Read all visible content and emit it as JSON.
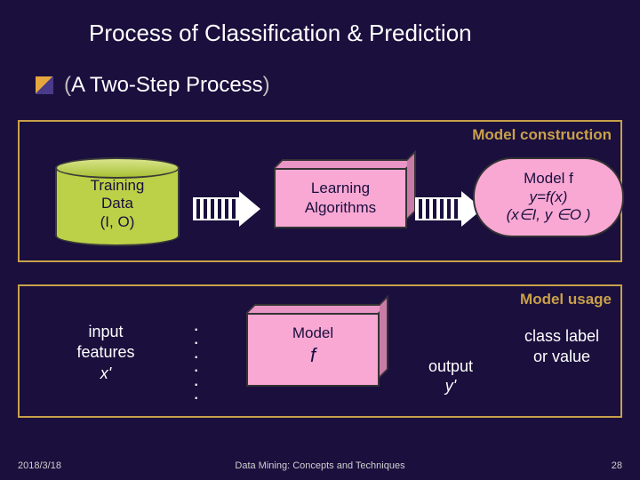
{
  "title": "Process of Classification & Prediction",
  "subtitle_open": "(",
  "subtitle_text": "A Two-Step Process",
  "subtitle_close": ")",
  "stage1": {
    "label": "Model construction",
    "cylinder_l1": "Training",
    "cylinder_l2": "Data",
    "cylinder_l3": "(I, O)",
    "learn_l1": "Learning",
    "learn_l2": "Algorithms",
    "model_l1": "Model f",
    "model_l2": "y=f(x)",
    "model_l3": "(x∈I, y ∈O )"
  },
  "stage2": {
    "label": "Model usage",
    "input_l1": "input",
    "input_l2": "features",
    "input_l3": "x'",
    "dots": "·\n·\n·\n·\n·\n·",
    "model_l1": "Model",
    "model_l2": "f",
    "output_l1": "output",
    "output_l2": "y'",
    "class_l1": "class label",
    "class_l2": "or value"
  },
  "footer": {
    "date": "2018/3/18",
    "center": "Data Mining: Concepts and Techniques",
    "num": "28"
  },
  "colors": {
    "bg": "#1a0f3d",
    "accent": "#c9a04a",
    "pink": "#f9a8d4",
    "green": "#bcd147"
  }
}
